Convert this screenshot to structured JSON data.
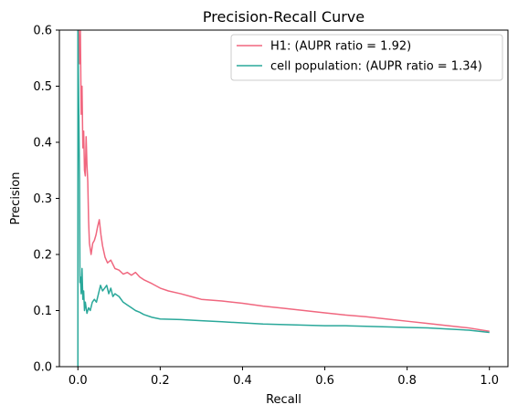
{
  "chart_data": {
    "type": "line",
    "title": "Precision-Recall Curve",
    "xlabel": "Recall",
    "ylabel": "Precision",
    "xlim": [
      -0.045,
      1.045
    ],
    "ylim": [
      0,
      0.6
    ],
    "xticks": [
      0.0,
      0.2,
      0.4,
      0.6,
      0.8,
      1.0
    ],
    "xtick_labels": [
      "0.0",
      "0.2",
      "0.4",
      "0.6",
      "0.8",
      "1.0"
    ],
    "yticks": [
      0.0,
      0.1,
      0.2,
      0.3,
      0.4,
      0.5,
      0.6
    ],
    "ytick_labels": [
      "0.0",
      "0.1",
      "0.2",
      "0.3",
      "0.4",
      "0.5",
      "0.6"
    ],
    "grid": false,
    "legend_position": "top-right",
    "series": [
      {
        "name": "H1: (AUPR ratio = 1.92)",
        "color": "#f0677f",
        "points": [
          [
            0.0,
            0.6
          ],
          [
            0.002,
            0.6
          ],
          [
            0.004,
            0.54
          ],
          [
            0.006,
            0.6
          ],
          [
            0.008,
            0.45
          ],
          [
            0.01,
            0.5
          ],
          [
            0.012,
            0.39
          ],
          [
            0.014,
            0.42
          ],
          [
            0.016,
            0.35
          ],
          [
            0.018,
            0.34
          ],
          [
            0.02,
            0.41
          ],
          [
            0.022,
            0.36
          ],
          [
            0.024,
            0.33
          ],
          [
            0.026,
            0.26
          ],
          [
            0.028,
            0.22
          ],
          [
            0.032,
            0.2
          ],
          [
            0.036,
            0.22
          ],
          [
            0.04,
            0.225
          ],
          [
            0.044,
            0.235
          ],
          [
            0.048,
            0.25
          ],
          [
            0.052,
            0.262
          ],
          [
            0.056,
            0.235
          ],
          [
            0.06,
            0.215
          ],
          [
            0.066,
            0.195
          ],
          [
            0.072,
            0.185
          ],
          [
            0.08,
            0.19
          ],
          [
            0.09,
            0.175
          ],
          [
            0.1,
            0.172
          ],
          [
            0.11,
            0.165
          ],
          [
            0.12,
            0.168
          ],
          [
            0.13,
            0.163
          ],
          [
            0.14,
            0.168
          ],
          [
            0.15,
            0.16
          ],
          [
            0.16,
            0.155
          ],
          [
            0.18,
            0.148
          ],
          [
            0.2,
            0.14
          ],
          [
            0.22,
            0.135
          ],
          [
            0.25,
            0.13
          ],
          [
            0.28,
            0.124
          ],
          [
            0.3,
            0.12
          ],
          [
            0.35,
            0.117
          ],
          [
            0.4,
            0.113
          ],
          [
            0.45,
            0.108
          ],
          [
            0.5,
            0.104
          ],
          [
            0.55,
            0.1
          ],
          [
            0.6,
            0.096
          ],
          [
            0.65,
            0.092
          ],
          [
            0.7,
            0.089
          ],
          [
            0.75,
            0.085
          ],
          [
            0.8,
            0.081
          ],
          [
            0.85,
            0.077
          ],
          [
            0.9,
            0.073
          ],
          [
            0.95,
            0.069
          ],
          [
            1.0,
            0.063
          ]
        ]
      },
      {
        "name": "cell population: (AUPR ratio = 1.34)",
        "color": "#2aa89a",
        "points": [
          [
            0.0,
            0.0
          ],
          [
            0.0,
            0.6
          ],
          [
            0.002,
            0.47
          ],
          [
            0.004,
            0.33
          ],
          [
            0.005,
            0.15
          ],
          [
            0.006,
            0.16
          ],
          [
            0.008,
            0.13
          ],
          [
            0.01,
            0.175
          ],
          [
            0.012,
            0.12
          ],
          [
            0.014,
            0.135
          ],
          [
            0.016,
            0.1
          ],
          [
            0.018,
            0.115
          ],
          [
            0.022,
            0.095
          ],
          [
            0.026,
            0.105
          ],
          [
            0.03,
            0.1
          ],
          [
            0.035,
            0.115
          ],
          [
            0.04,
            0.12
          ],
          [
            0.045,
            0.115
          ],
          [
            0.05,
            0.13
          ],
          [
            0.055,
            0.145
          ],
          [
            0.06,
            0.135
          ],
          [
            0.065,
            0.14
          ],
          [
            0.07,
            0.145
          ],
          [
            0.075,
            0.13
          ],
          [
            0.08,
            0.14
          ],
          [
            0.085,
            0.125
          ],
          [
            0.09,
            0.13
          ],
          [
            0.1,
            0.125
          ],
          [
            0.11,
            0.115
          ],
          [
            0.12,
            0.11
          ],
          [
            0.13,
            0.105
          ],
          [
            0.14,
            0.1
          ],
          [
            0.15,
            0.097
          ],
          [
            0.16,
            0.093
          ],
          [
            0.18,
            0.088
          ],
          [
            0.2,
            0.085
          ],
          [
            0.25,
            0.084
          ],
          [
            0.3,
            0.082
          ],
          [
            0.35,
            0.08
          ],
          [
            0.4,
            0.078
          ],
          [
            0.45,
            0.076
          ],
          [
            0.5,
            0.075
          ],
          [
            0.55,
            0.074
          ],
          [
            0.6,
            0.073
          ],
          [
            0.65,
            0.073
          ],
          [
            0.7,
            0.072
          ],
          [
            0.75,
            0.071
          ],
          [
            0.8,
            0.07
          ],
          [
            0.85,
            0.069
          ],
          [
            0.9,
            0.067
          ],
          [
            0.95,
            0.065
          ],
          [
            1.0,
            0.061
          ]
        ]
      }
    ]
  }
}
